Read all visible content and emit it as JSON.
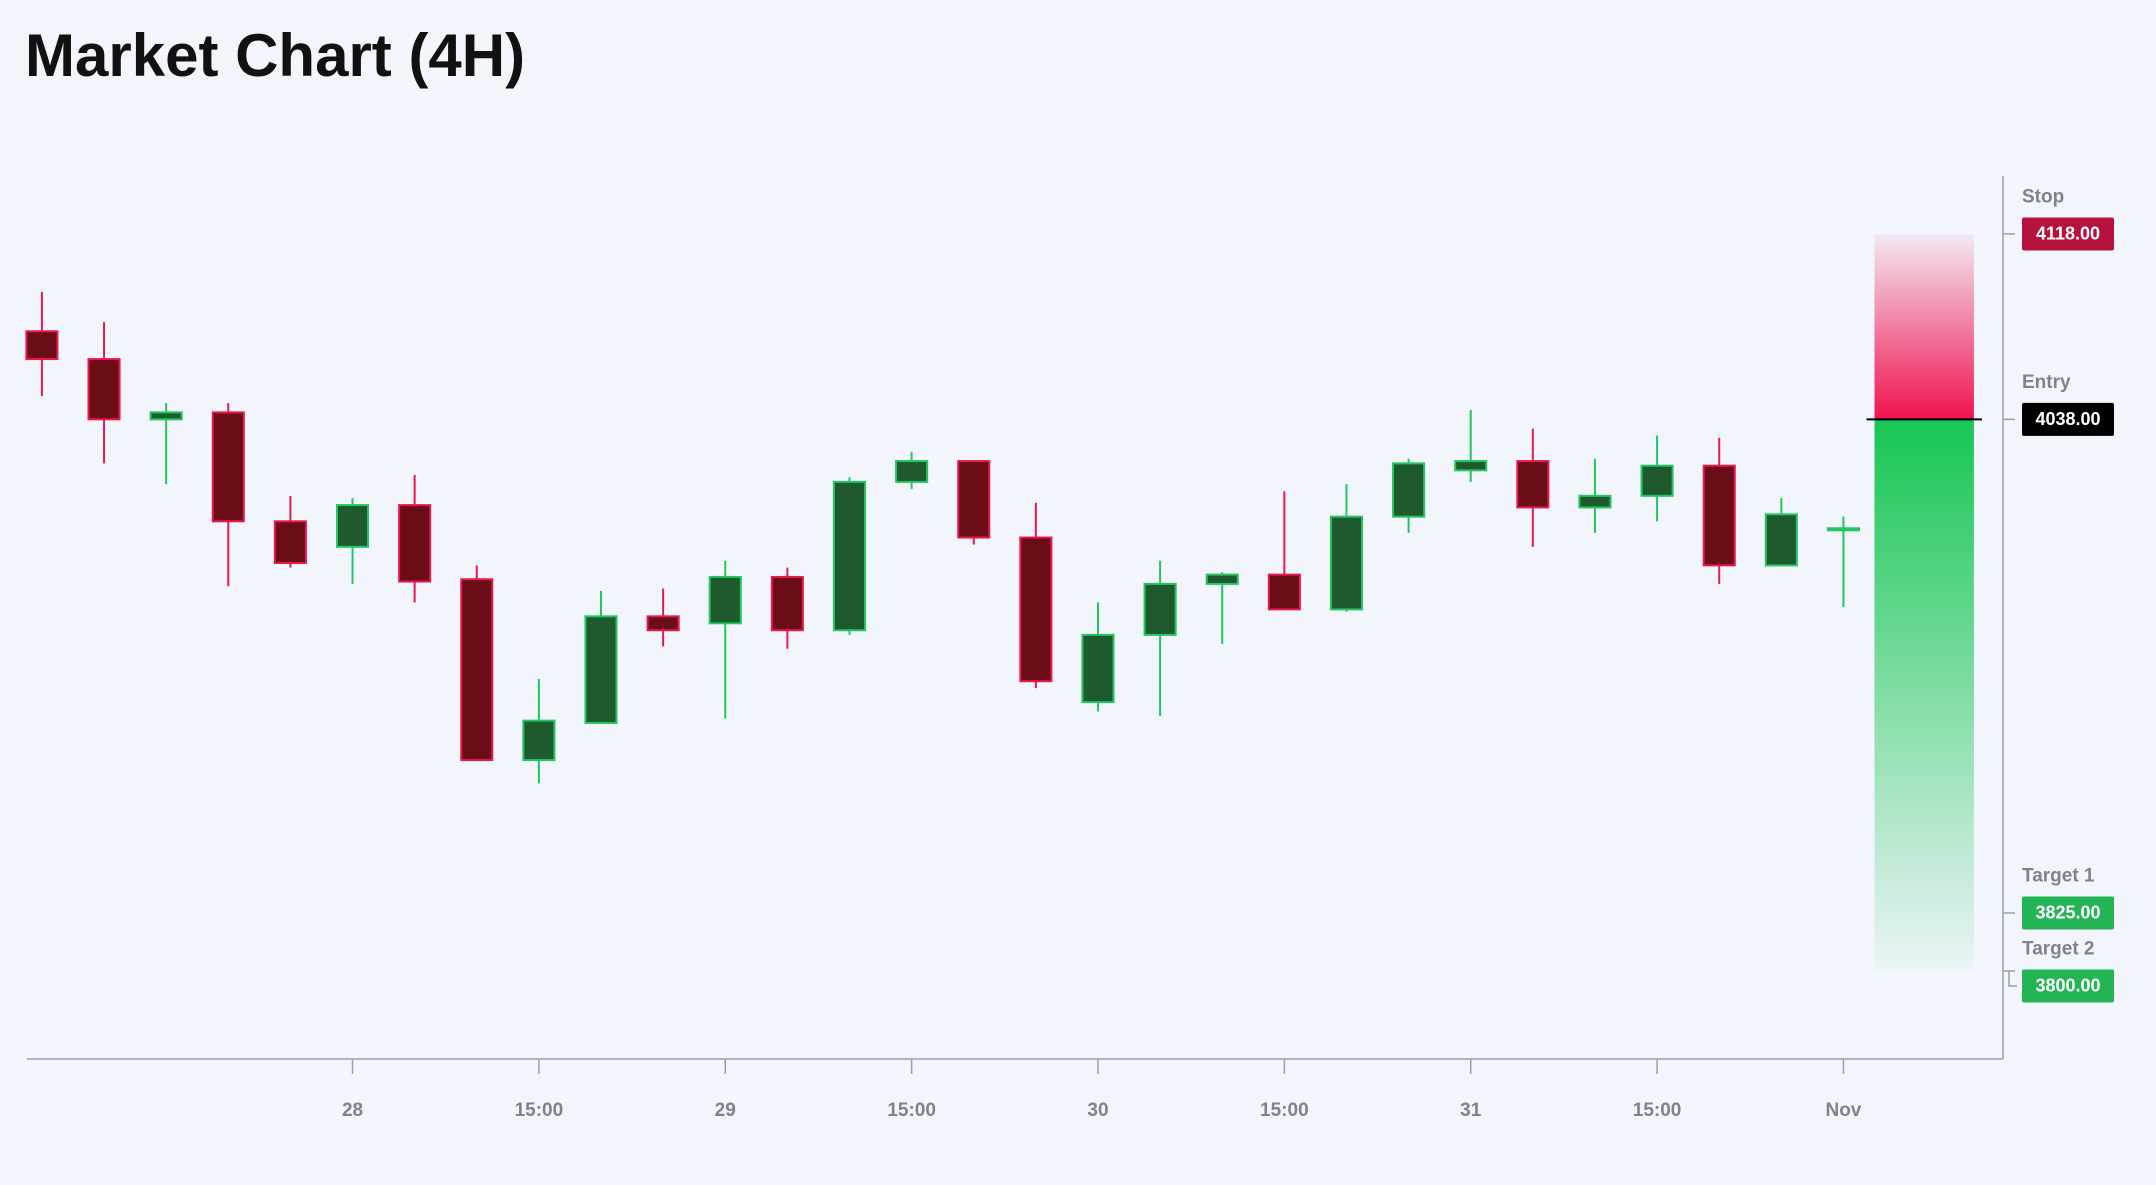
{
  "chart_data": {
    "type": "candlestick",
    "title": "Market Chart (4H)",
    "categories": [
      null,
      null,
      null,
      null,
      null,
      "28",
      null,
      null,
      "15:00",
      null,
      null,
      "29",
      null,
      null,
      "15:00",
      null,
      null,
      "30",
      null,
      null,
      "15:00",
      null,
      null,
      "31",
      null,
      null,
      "15:00",
      null,
      null,
      "Nov"
    ],
    "open": [
      4076,
      4064,
      4038,
      4041,
      3994,
      3983,
      4001,
      3969,
      3891,
      3907,
      3953,
      3950,
      3970,
      3947,
      4011,
      4020,
      3987,
      3916,
      3945,
      3967,
      3971,
      3956,
      3996,
      4016,
      4020,
      4000,
      4005,
      4018,
      3975,
      3991
    ],
    "high": [
      4093,
      4080,
      4045,
      4045,
      4005,
      4004,
      4014,
      3975,
      3926,
      3964,
      3965,
      3977,
      3974,
      4013,
      4024,
      4020,
      4002,
      3959,
      3977,
      3972,
      4007,
      4010,
      4021,
      4042,
      4034,
      4021,
      4031,
      4030,
      4004,
      3996
    ],
    "low": [
      4048,
      4019,
      4010,
      3966,
      3974,
      3967,
      3959,
      3891,
      3881,
      3907,
      3940,
      3909,
      3939,
      3945,
      4008,
      3984,
      3922,
      3912,
      3910,
      3941,
      3956,
      3955,
      3989,
      4011,
      3983,
      3989,
      3994,
      3967,
      3975,
      3957
    ],
    "close": [
      4064,
      4038,
      4041,
      3994,
      3976,
      4001,
      3968,
      3891,
      3908,
      3953,
      3947,
      3970,
      3947,
      4011,
      4020,
      3987,
      3925,
      3945,
      3967,
      3971,
      3956,
      3996,
      4019,
      4020,
      4000,
      4005,
      4018,
      3975,
      3997,
      3991
    ],
    "up_color": "#22c55e",
    "up_fill": "#1f5a2e",
    "down_color": "#e8194f",
    "down_fill": "#6b0d17",
    "ylim": [
      3762,
      4143
    ],
    "levels": [
      {
        "name": "Stop",
        "value": 4118,
        "label": "4118.00",
        "color": "#b5123e"
      },
      {
        "name": "Entry",
        "value": 4038,
        "label": "4038.00",
        "color": "#000000"
      },
      {
        "name": "Target 1",
        "value": 3825,
        "label": "3825.00",
        "color": "#22b455"
      },
      {
        "name": "Target 2",
        "value": 3800,
        "label": "3800.00",
        "color": "#22b455"
      }
    ]
  }
}
